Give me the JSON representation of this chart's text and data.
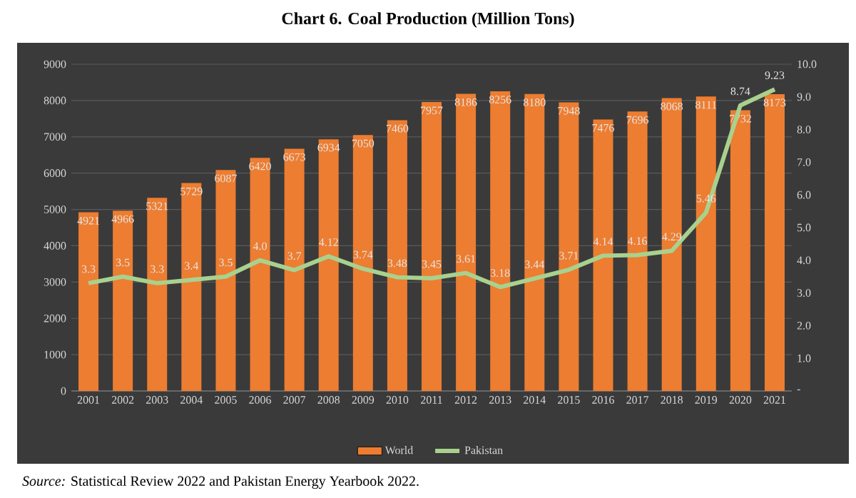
{
  "chart_data": {
    "type": "bar",
    "title": "Chart 6. Coal Production (Million Tons)",
    "categories": [
      "2001",
      "2002",
      "2003",
      "2004",
      "2005",
      "2006",
      "2007",
      "2008",
      "2009",
      "2010",
      "2011",
      "2012",
      "2013",
      "2014",
      "2015",
      "2016",
      "2017",
      "2018",
      "2019",
      "2020",
      "2021"
    ],
    "series": [
      {
        "name": "World",
        "color": "#ed7d31",
        "values": [
          4921,
          4966,
          5321,
          5729,
          6087,
          6420,
          6673,
          6934,
          7050,
          7460,
          7957,
          8186,
          8256,
          8180,
          7948,
          7476,
          7696,
          8068,
          8111,
          7732,
          8173
        ]
      },
      {
        "name": "Pakistan",
        "type": "line",
        "axis": "y2",
        "color": "#a9d18e",
        "values": [
          3.3,
          3.5,
          3.3,
          3.4,
          3.5,
          4.0,
          3.7,
          4.12,
          3.74,
          3.48,
          3.45,
          3.61,
          3.18,
          3.44,
          3.71,
          4.14,
          4.16,
          4.29,
          5.46,
          8.74,
          9.23
        ],
        "value_labels": [
          "3.3",
          "3.5",
          "3.3",
          "3.4",
          "3.5",
          "4.0",
          "3.7",
          "4.12",
          "3.74",
          "3.48",
          "3.45",
          "3.61",
          "3.18",
          "3.44",
          "3.71",
          "4.14",
          "4.16",
          "4.29",
          "5.46",
          "8.74",
          "9.23"
        ]
      }
    ],
    "ylim": [
      0,
      9000
    ],
    "yticks": [
      0,
      1000,
      2000,
      3000,
      4000,
      5000,
      6000,
      7000,
      8000,
      9000
    ],
    "y2lim": [
      0,
      10
    ],
    "y2ticks": [
      {
        "value": 0,
        "label": "-"
      },
      {
        "value": 1,
        "label": "1.0"
      },
      {
        "value": 2,
        "label": "2.0"
      },
      {
        "value": 3,
        "label": "3.0"
      },
      {
        "value": 4,
        "label": "4.0"
      },
      {
        "value": 5,
        "label": "5.0"
      },
      {
        "value": 6,
        "label": "6.0"
      },
      {
        "value": 7,
        "label": "7.0"
      },
      {
        "value": 8,
        "label": "8.0"
      },
      {
        "value": 9,
        "label": "9.0"
      },
      {
        "value": 10,
        "label": "10.0"
      }
    ],
    "data_labels": true,
    "grid": "y",
    "legend": "bottom",
    "annotations": [
      "*Source:* Statistical Review 2022 and Pakistan Energy Yearbook 2022."
    ]
  }
}
